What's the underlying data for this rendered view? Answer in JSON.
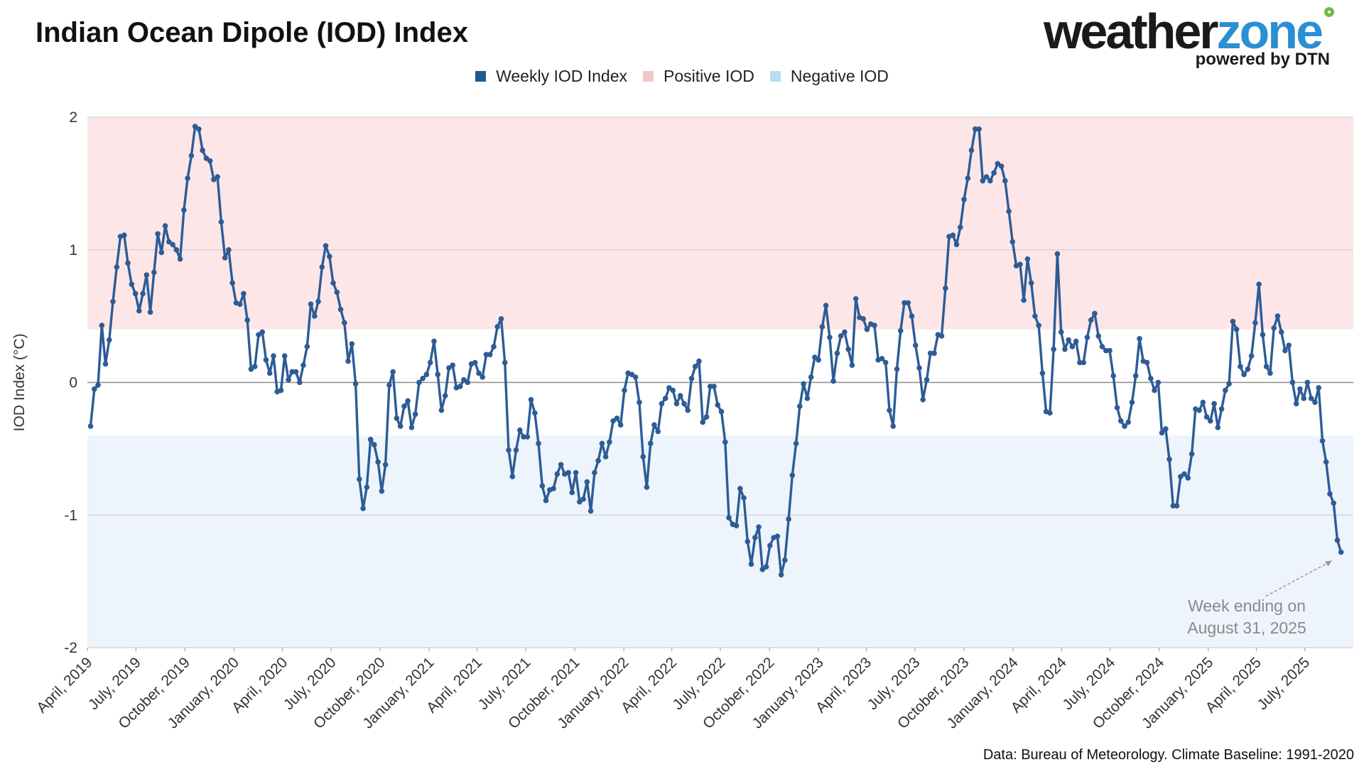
{
  "header": {
    "title": "Indian Ocean Dipole (IOD) Index"
  },
  "logo": {
    "word_dark": "weather",
    "word_accent": "zone",
    "tagline": "powered by DTN",
    "colors": {
      "dark": "#1a1a1a",
      "accent": "#2a8ed3",
      "dot": "#6dbd45"
    }
  },
  "legend": [
    {
      "label": "Weekly IOD Index",
      "color": "#1f5b8c"
    },
    {
      "label": "Positive IOD",
      "color": "#f5c6c9"
    },
    {
      "label": "Negative IOD",
      "color": "#b9ddf0"
    }
  ],
  "annotation": {
    "line1": "Week ending on",
    "line2": "August 31, 2025"
  },
  "source": "Data: Bureau of Meteorology. Climate Baseline: 1991-2020",
  "chart_data": {
    "type": "line",
    "title": "Indian Ocean Dipole (IOD) Index",
    "ylabel": "IOD Index (°C)",
    "xlabel": "",
    "ylim": [
      -2,
      2
    ],
    "yticks": [
      2,
      1,
      0,
      -1,
      -2
    ],
    "ytick_labels": [
      "2",
      "1",
      "0",
      "-1",
      "-2"
    ],
    "x_start": "2019-04-01",
    "x_end": "2025-09-30",
    "xtick_labels": [
      "April, 2019",
      "July, 2019",
      "October, 2019",
      "January, 2020",
      "April, 2020",
      "July, 2020",
      "October, 2020",
      "January, 2021",
      "April, 2021",
      "July, 2021",
      "October, 2021",
      "January, 2022",
      "April, 2022",
      "July, 2022",
      "October, 2022",
      "January, 2023",
      "April, 2023",
      "July, 2023",
      "October, 2023",
      "January, 2024",
      "April, 2024",
      "July, 2024",
      "October, 2024",
      "January, 2025",
      "April, 2025",
      "July, 2025"
    ],
    "xtick_dates": [
      "2019-04-01",
      "2019-07-01",
      "2019-10-01",
      "2020-01-01",
      "2020-04-01",
      "2020-07-01",
      "2020-10-01",
      "2021-01-01",
      "2021-04-01",
      "2021-07-01",
      "2021-10-01",
      "2022-01-01",
      "2022-04-01",
      "2022-07-01",
      "2022-10-01",
      "2023-01-01",
      "2023-04-01",
      "2023-07-01",
      "2023-10-01",
      "2024-01-01",
      "2024-04-01",
      "2024-07-01",
      "2024-10-01",
      "2025-01-01",
      "2025-04-01",
      "2025-07-01"
    ],
    "bands": [
      {
        "name": "Positive IOD",
        "from": 0.4,
        "to": 2,
        "color": "#fde6e8"
      },
      {
        "name": "Negative IOD",
        "from": -2,
        "to": -0.4,
        "color": "#edf4fb"
      }
    ],
    "grid": "horizontal",
    "legend_position": "top-center",
    "series": [
      {
        "name": "Weekly IOD Index",
        "color": "#2d5c95",
        "start_week_ending": "2019-04-07",
        "end_week_ending": "2025-08-31",
        "values": [
          -0.33,
          -0.05,
          -0.02,
          0.43,
          0.14,
          0.32,
          0.61,
          0.87,
          1.1,
          1.11,
          0.9,
          0.74,
          0.67,
          0.54,
          0.67,
          0.81,
          0.53,
          0.83,
          1.12,
          0.98,
          1.18,
          1.06,
          1.04,
          1.0,
          0.93,
          1.3,
          1.54,
          1.71,
          1.93,
          1.91,
          1.75,
          1.69,
          1.67,
          1.53,
          1.55,
          1.21,
          0.94,
          1.0,
          0.75,
          0.6,
          0.59,
          0.67,
          0.47,
          0.1,
          0.12,
          0.36,
          0.38,
          0.17,
          0.07,
          0.2,
          -0.07,
          -0.06,
          0.2,
          0.02,
          0.08,
          0.08,
          0.0,
          0.13,
          0.27,
          0.59,
          0.5,
          0.61,
          0.87,
          1.03,
          0.95,
          0.75,
          0.68,
          0.55,
          0.45,
          0.16,
          0.29,
          -0.01,
          -0.73,
          -0.95,
          -0.79,
          -0.43,
          -0.47,
          -0.6,
          -0.82,
          -0.62,
          -0.02,
          0.08,
          -0.27,
          -0.33,
          -0.18,
          -0.14,
          -0.34,
          -0.24,
          0.0,
          0.03,
          0.06,
          0.15,
          0.31,
          0.06,
          -0.21,
          -0.1,
          0.11,
          0.13,
          -0.04,
          -0.03,
          0.02,
          0.0,
          0.14,
          0.15,
          0.07,
          0.04,
          0.21,
          0.21,
          0.27,
          0.42,
          0.48,
          0.15,
          -0.51,
          -0.71,
          -0.51,
          -0.36,
          -0.41,
          -0.41,
          -0.13,
          -0.23,
          -0.46,
          -0.78,
          -0.89,
          -0.81,
          -0.8,
          -0.69,
          -0.62,
          -0.69,
          -0.68,
          -0.83,
          -0.68,
          -0.9,
          -0.88,
          -0.75,
          -0.97,
          -0.68,
          -0.59,
          -0.46,
          -0.56,
          -0.45,
          -0.29,
          -0.27,
          -0.32,
          -0.06,
          0.07,
          0.06,
          0.04,
          -0.15,
          -0.56,
          -0.79,
          -0.46,
          -0.32,
          -0.37,
          -0.16,
          -0.12,
          -0.04,
          -0.06,
          -0.16,
          -0.1,
          -0.16,
          -0.21,
          0.03,
          0.12,
          0.16,
          -0.3,
          -0.26,
          -0.03,
          -0.03,
          -0.17,
          -0.22,
          -0.45,
          -1.02,
          -1.07,
          -1.08,
          -0.8,
          -0.87,
          -1.2,
          -1.37,
          -1.17,
          -1.09,
          -1.41,
          -1.39,
          -1.23,
          -1.17,
          -1.16,
          -1.45,
          -1.34,
          -1.03,
          -0.7,
          -0.46,
          -0.18,
          -0.01,
          -0.12,
          0.04,
          0.19,
          0.17,
          0.42,
          0.58,
          0.34,
          0.01,
          0.22,
          0.35,
          0.38,
          0.25,
          0.13,
          0.63,
          0.49,
          0.48,
          0.4,
          0.44,
          0.43,
          0.17,
          0.18,
          0.15,
          -0.21,
          -0.33,
          0.1,
          0.39,
          0.6,
          0.6,
          0.5,
          0.28,
          0.11,
          -0.13,
          0.02,
          0.22,
          0.22,
          0.36,
          0.35,
          0.71,
          1.1,
          1.11,
          1.04,
          1.17,
          1.38,
          1.54,
          1.75,
          1.91,
          1.91,
          1.52,
          1.55,
          1.52,
          1.58,
          1.65,
          1.63,
          1.52,
          1.29,
          1.06,
          0.88,
          0.89,
          0.62,
          0.93,
          0.75,
          0.5,
          0.43,
          0.07,
          -0.22,
          -0.23,
          0.25,
          0.97,
          0.38,
          0.25,
          0.32,
          0.27,
          0.31,
          0.15,
          0.15,
          0.34,
          0.47,
          0.52,
          0.35,
          0.27,
          0.24,
          0.24,
          0.05,
          -0.19,
          -0.29,
          -0.33,
          -0.3,
          -0.15,
          0.05,
          0.33,
          0.16,
          0.15,
          0.03,
          -0.06,
          0.0,
          -0.38,
          -0.35,
          -0.58,
          -0.93,
          -0.93,
          -0.71,
          -0.69,
          -0.72,
          -0.54,
          -0.2,
          -0.21,
          -0.15,
          -0.26,
          -0.29,
          -0.16,
          -0.34,
          -0.2,
          -0.06,
          -0.01,
          0.46,
          0.4,
          0.12,
          0.06,
          0.1,
          0.2,
          0.45,
          0.74,
          0.36,
          0.12,
          0.07,
          0.41,
          0.5,
          0.38,
          0.24,
          0.28,
          0.0,
          -0.16,
          -0.05,
          -0.12,
          0.0,
          -0.12,
          -0.15,
          -0.04,
          -0.44,
          -0.6,
          -0.84,
          -0.91,
          -1.19,
          -1.28
        ]
      }
    ]
  }
}
